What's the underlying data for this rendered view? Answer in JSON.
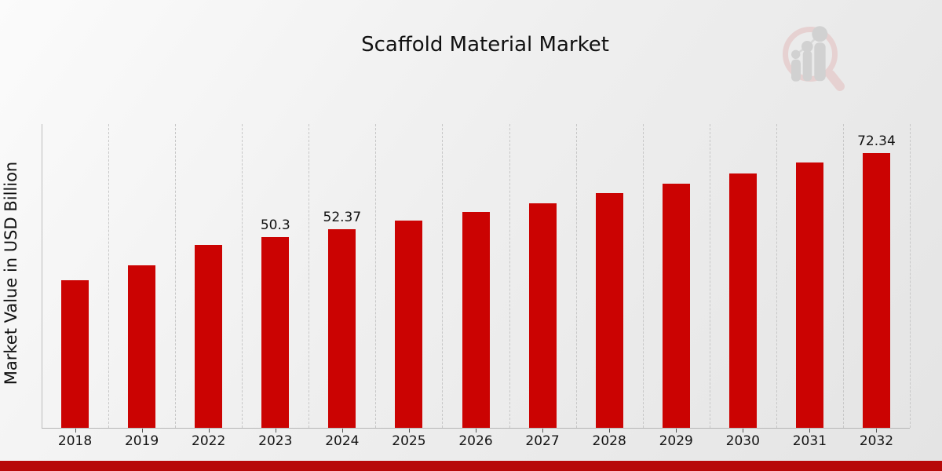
{
  "page": {
    "background_top_left": "#fbfbfb",
    "background_bottom_right": "#e4e4e4",
    "ribbon_color": "#b70909"
  },
  "logo": {
    "description": "magnifying-glass-bar-chart-watermark",
    "ring_color": "#e5c9c9",
    "bar_color": "#c9c9c9",
    "node_color": "#c9c9c9",
    "line_color": "#d2d2d2"
  },
  "chart_data": {
    "type": "bar",
    "title": "Scaffold Material Market",
    "xlabel": "",
    "ylabel": "Market Value in USD Billion",
    "bar_color": "#cb0302",
    "grid": "vertical-dashed",
    "legend": "none",
    "ylim": [
      0,
      75
    ],
    "categories": [
      "2018",
      "2019",
      "2022",
      "2023",
      "2024",
      "2025",
      "2026",
      "2027",
      "2028",
      "2029",
      "2030",
      "2031",
      "2032"
    ],
    "values": [
      38.8,
      42.8,
      48.2,
      50.3,
      52.37,
      54.6,
      56.9,
      59.2,
      61.7,
      64.2,
      66.9,
      69.8,
      72.34
    ],
    "data_labels": [
      "",
      "",
      "",
      "50.3",
      "52.37",
      "",
      "",
      "",
      "",
      "",
      "",
      "",
      "72.34"
    ]
  }
}
